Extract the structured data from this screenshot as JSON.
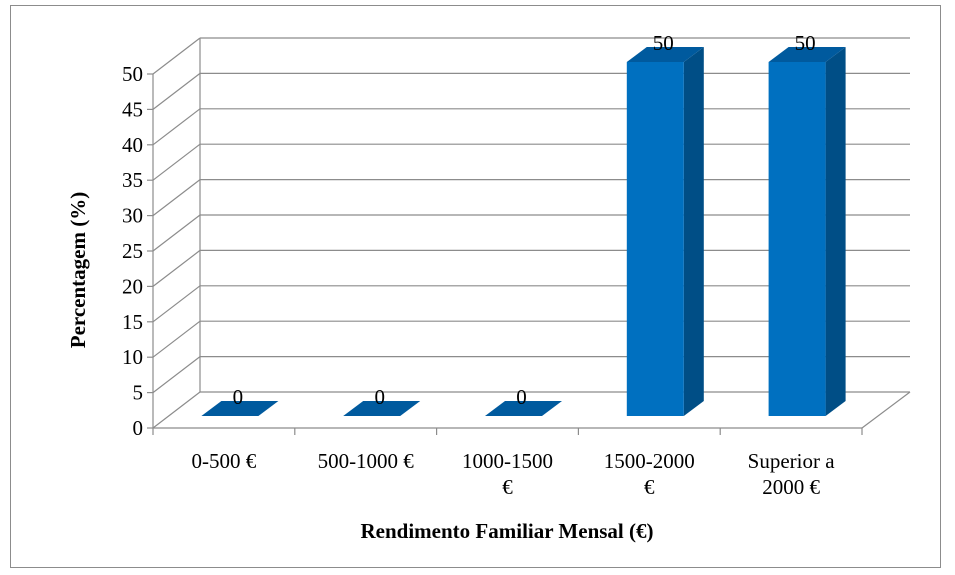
{
  "chart_data": {
    "type": "bar",
    "title": "",
    "xlabel": "Rendimento Familiar Mensal (€)",
    "ylabel": "Percentagem (%)",
    "categories": [
      [
        "0-500 €"
      ],
      [
        "500-1000 €"
      ],
      [
        "1000-1500",
        "€"
      ],
      [
        "1500-2000",
        "€"
      ],
      [
        "Superior a",
        "2000 €"
      ]
    ],
    "values": [
      0,
      0,
      0,
      50,
      50
    ],
    "data_labels": [
      "0",
      "0",
      "0",
      "50",
      "50"
    ],
    "ylim": [
      0,
      50
    ],
    "yticks": [
      "0",
      "5",
      "10",
      "15",
      "20",
      "25",
      "30",
      "35",
      "40",
      "45",
      "50"
    ],
    "grid": true,
    "legend": "none",
    "three_d": true,
    "colors": {
      "bar_front": "#0070C0",
      "bar_side": "#004E86",
      "bar_top": "#005A9E",
      "grid": "#8c8c8c",
      "axis": "#8c8c8c"
    }
  }
}
